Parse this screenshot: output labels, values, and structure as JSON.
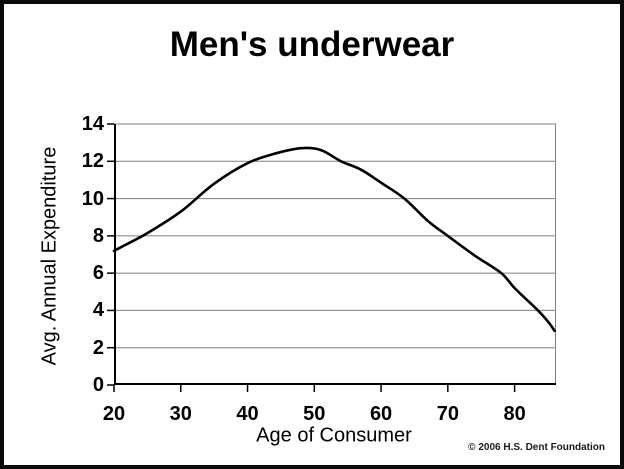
{
  "page": {
    "title": "Men's underwear",
    "copyright": "© 2006 H.S. Dent Foundation"
  },
  "chart_data": {
    "type": "line",
    "title": "Men's underwear",
    "xlabel": "Age of Consumer",
    "ylabel": "Avg. Annual Expenditure",
    "xlim": [
      20,
      86.2
    ],
    "ylim": [
      0,
      14
    ],
    "x_ticks": [
      20,
      30,
      40,
      50,
      60,
      70,
      80
    ],
    "y_ticks": [
      0,
      2,
      4,
      6,
      8,
      10,
      12,
      14
    ],
    "grid": "horizontal",
    "legend": "none",
    "colors": {
      "line": "#000000",
      "gridline": "#808080",
      "axis": "#000000",
      "background": "#ffffff",
      "page_border": "#0a0a0a"
    },
    "series": [
      {
        "name": "Avg. annual expenditure on men's underwear by age of consumer",
        "points": [
          [
            20,
            7.2
          ],
          [
            25,
            8.15
          ],
          [
            30,
            9.3
          ],
          [
            35,
            10.8
          ],
          [
            40,
            11.9
          ],
          [
            44,
            12.4
          ],
          [
            48,
            12.7
          ],
          [
            51,
            12.6
          ],
          [
            54,
            12.0
          ],
          [
            57,
            11.55
          ],
          [
            60,
            10.85
          ],
          [
            63.5,
            10.0
          ],
          [
            67,
            8.8
          ],
          [
            70,
            8.0
          ],
          [
            74,
            6.95
          ],
          [
            78,
            6.0
          ],
          [
            80,
            5.2
          ],
          [
            83.5,
            4.0
          ],
          [
            85,
            3.4
          ],
          [
            86,
            2.9
          ]
        ]
      }
    ]
  }
}
